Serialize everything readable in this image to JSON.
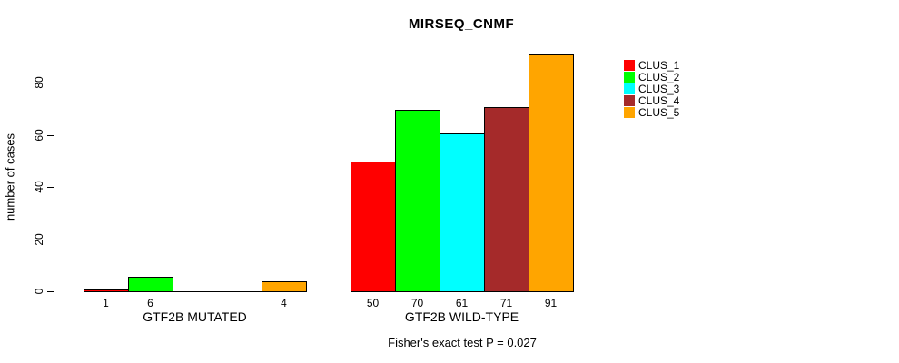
{
  "chart_data": {
    "type": "bar",
    "title": "MIRSEQ_CNMF",
    "ylabel": "number of cases",
    "xlabel": "",
    "categories": [
      "GTF2B MUTATED",
      "GTF2B WILD-TYPE"
    ],
    "series": [
      {
        "name": "CLUS_1",
        "color": "#FF0000",
        "values": [
          1,
          50
        ]
      },
      {
        "name": "CLUS_2",
        "color": "#00FF00",
        "values": [
          6,
          70
        ]
      },
      {
        "name": "CLUS_3",
        "color": "#00FFFF",
        "values": [
          0,
          61
        ]
      },
      {
        "name": "CLUS_4",
        "color": "#A52A2A",
        "values": [
          0,
          71
        ]
      },
      {
        "name": "CLUS_5",
        "color": "#FFA500",
        "values": [
          4,
          91
        ]
      }
    ],
    "bar_value_labels": [
      [
        "1",
        "6",
        "",
        "",
        "4"
      ],
      [
        "50",
        "70",
        "61",
        "71",
        "91"
      ]
    ],
    "yticks": [
      0,
      20,
      40,
      60,
      80
    ],
    "ylim": [
      0,
      91
    ],
    "grid": false,
    "legend_position": "right-outside",
    "annotations": [
      "Fisher's exact test P = 0.027"
    ]
  }
}
